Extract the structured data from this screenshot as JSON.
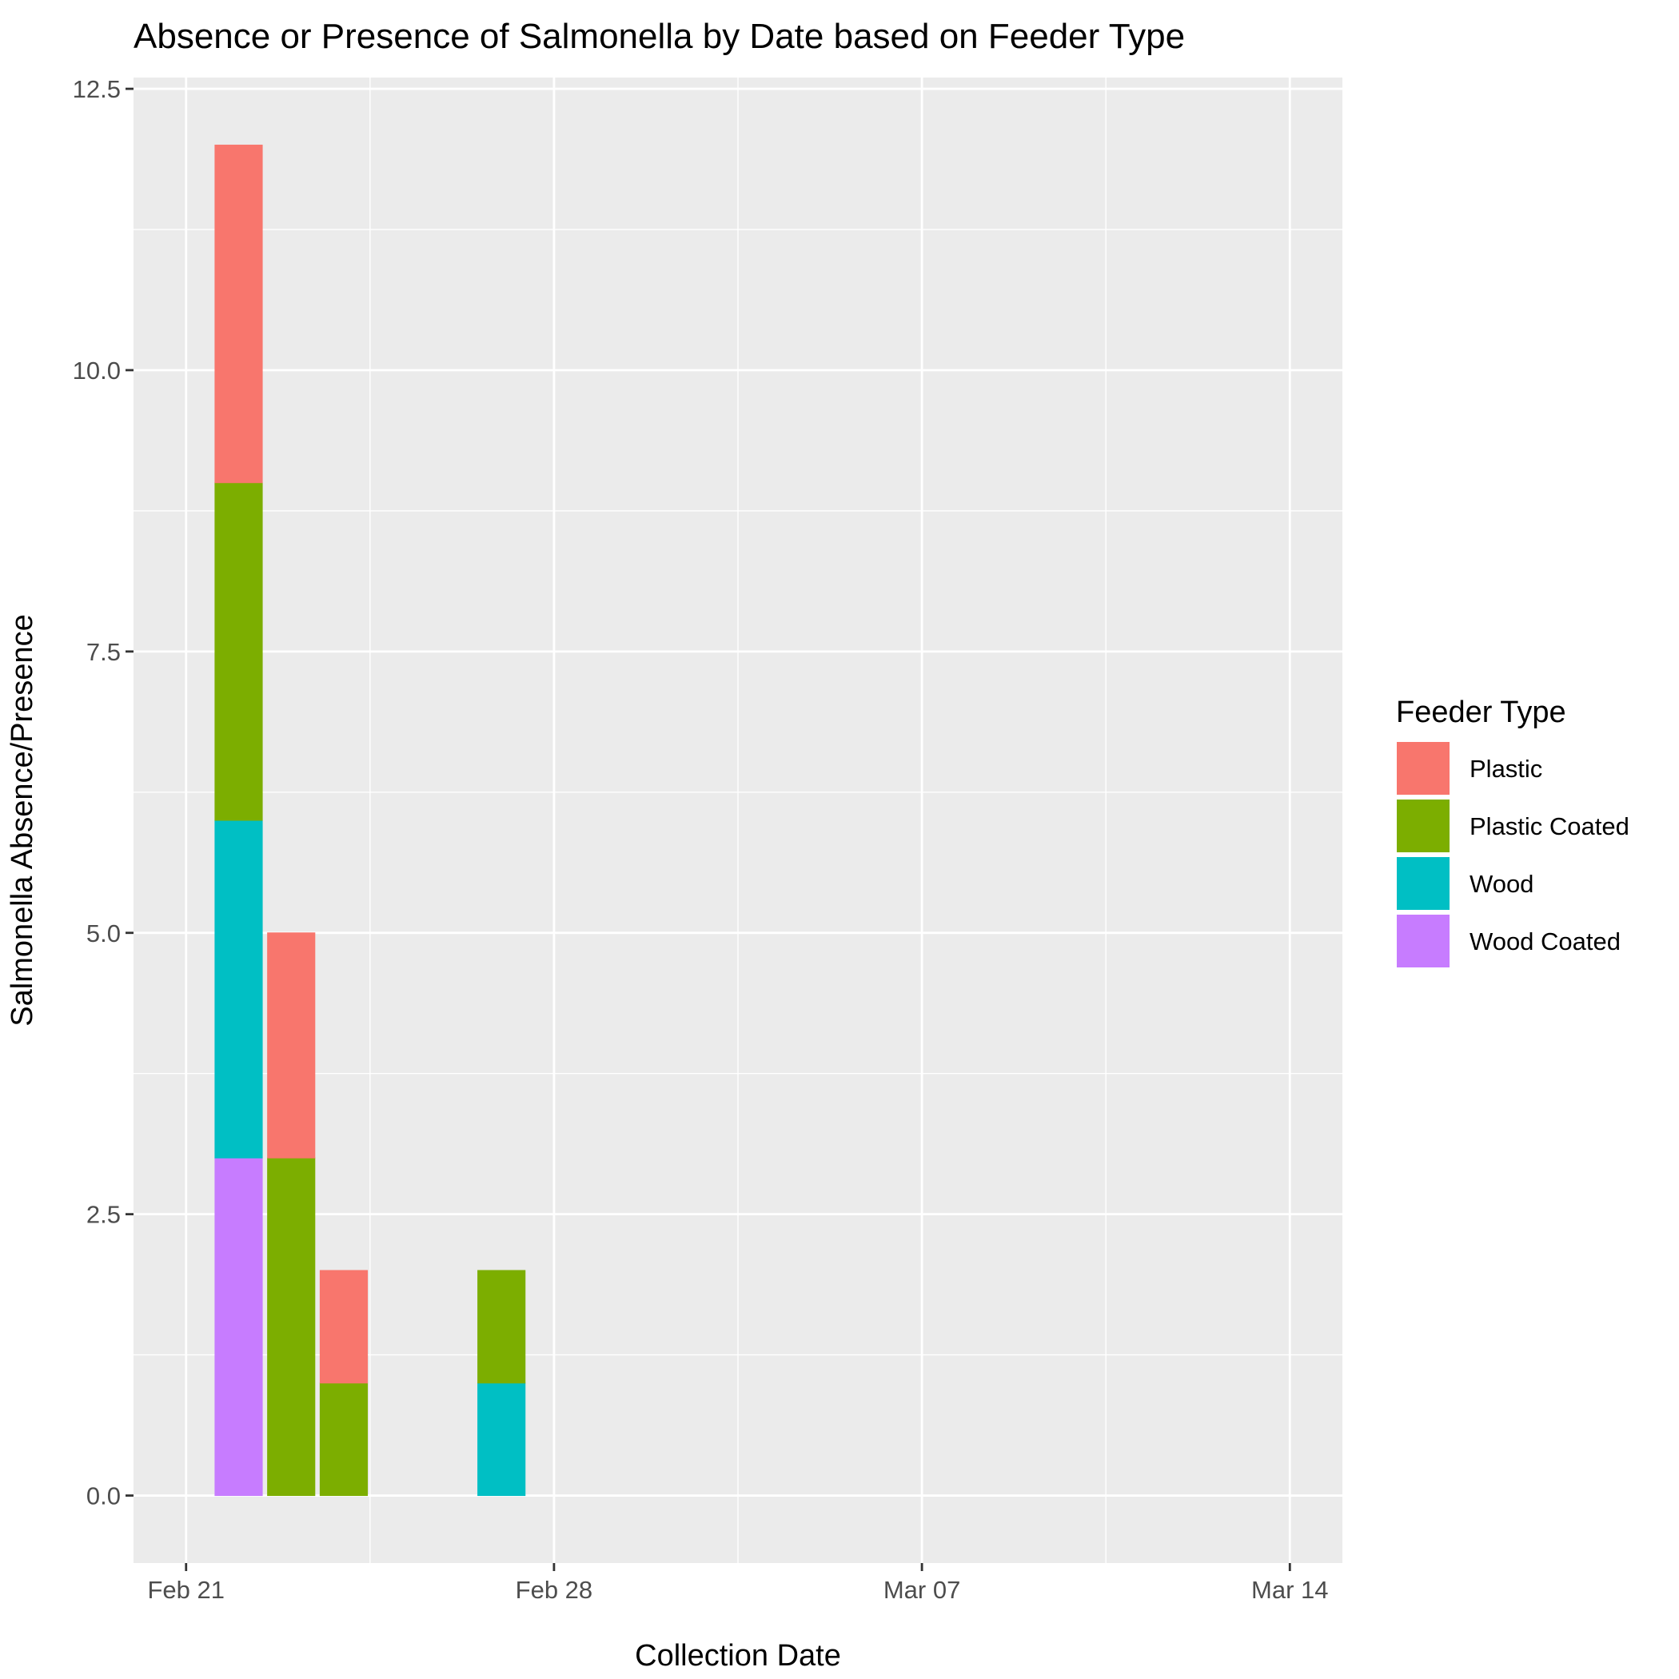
{
  "chart_data": {
    "type": "bar",
    "stacked": true,
    "title": "Absence or Presence of Salmonella by Date based on Feeder Type",
    "xlabel": "Collection Date",
    "ylabel": "Salmonella Absence/Presence",
    "x_tick_labels": [
      "Feb 21",
      "Feb 28",
      "Mar 07",
      "Mar 14"
    ],
    "x_tick_dates": [
      "2023-02-21",
      "2023-02-28",
      "2023-03-07",
      "2023-03-14"
    ],
    "y_tick_labels": [
      "0.0",
      "2.5",
      "5.0",
      "7.5",
      "10.0",
      "12.5"
    ],
    "y_ticks": [
      0,
      2.5,
      5,
      7.5,
      10,
      12.5
    ],
    "xlim": [
      "2023-02-20",
      "2023-03-15"
    ],
    "ylim": [
      -0.6,
      12.6
    ],
    "grid": true,
    "legend_title": "Feeder Type",
    "legend_position": "right",
    "categories": [
      "2023-02-22",
      "2023-02-23",
      "2023-02-24",
      "2023-02-27"
    ],
    "series": [
      {
        "name": "Plastic",
        "color": "#F8766D",
        "values": [
          3,
          2,
          1,
          0
        ]
      },
      {
        "name": "Plastic Coated",
        "color": "#7CAE00",
        "values": [
          3,
          3,
          1,
          1
        ]
      },
      {
        "name": "Wood",
        "color": "#00BFC4",
        "values": [
          3,
          0,
          0,
          1
        ]
      },
      {
        "name": "Wood Coated",
        "color": "#C77CFF",
        "values": [
          3,
          0,
          0,
          0
        ]
      }
    ],
    "panel_background": "#EBEBEB",
    "grid_color": "#FFFFFF"
  }
}
